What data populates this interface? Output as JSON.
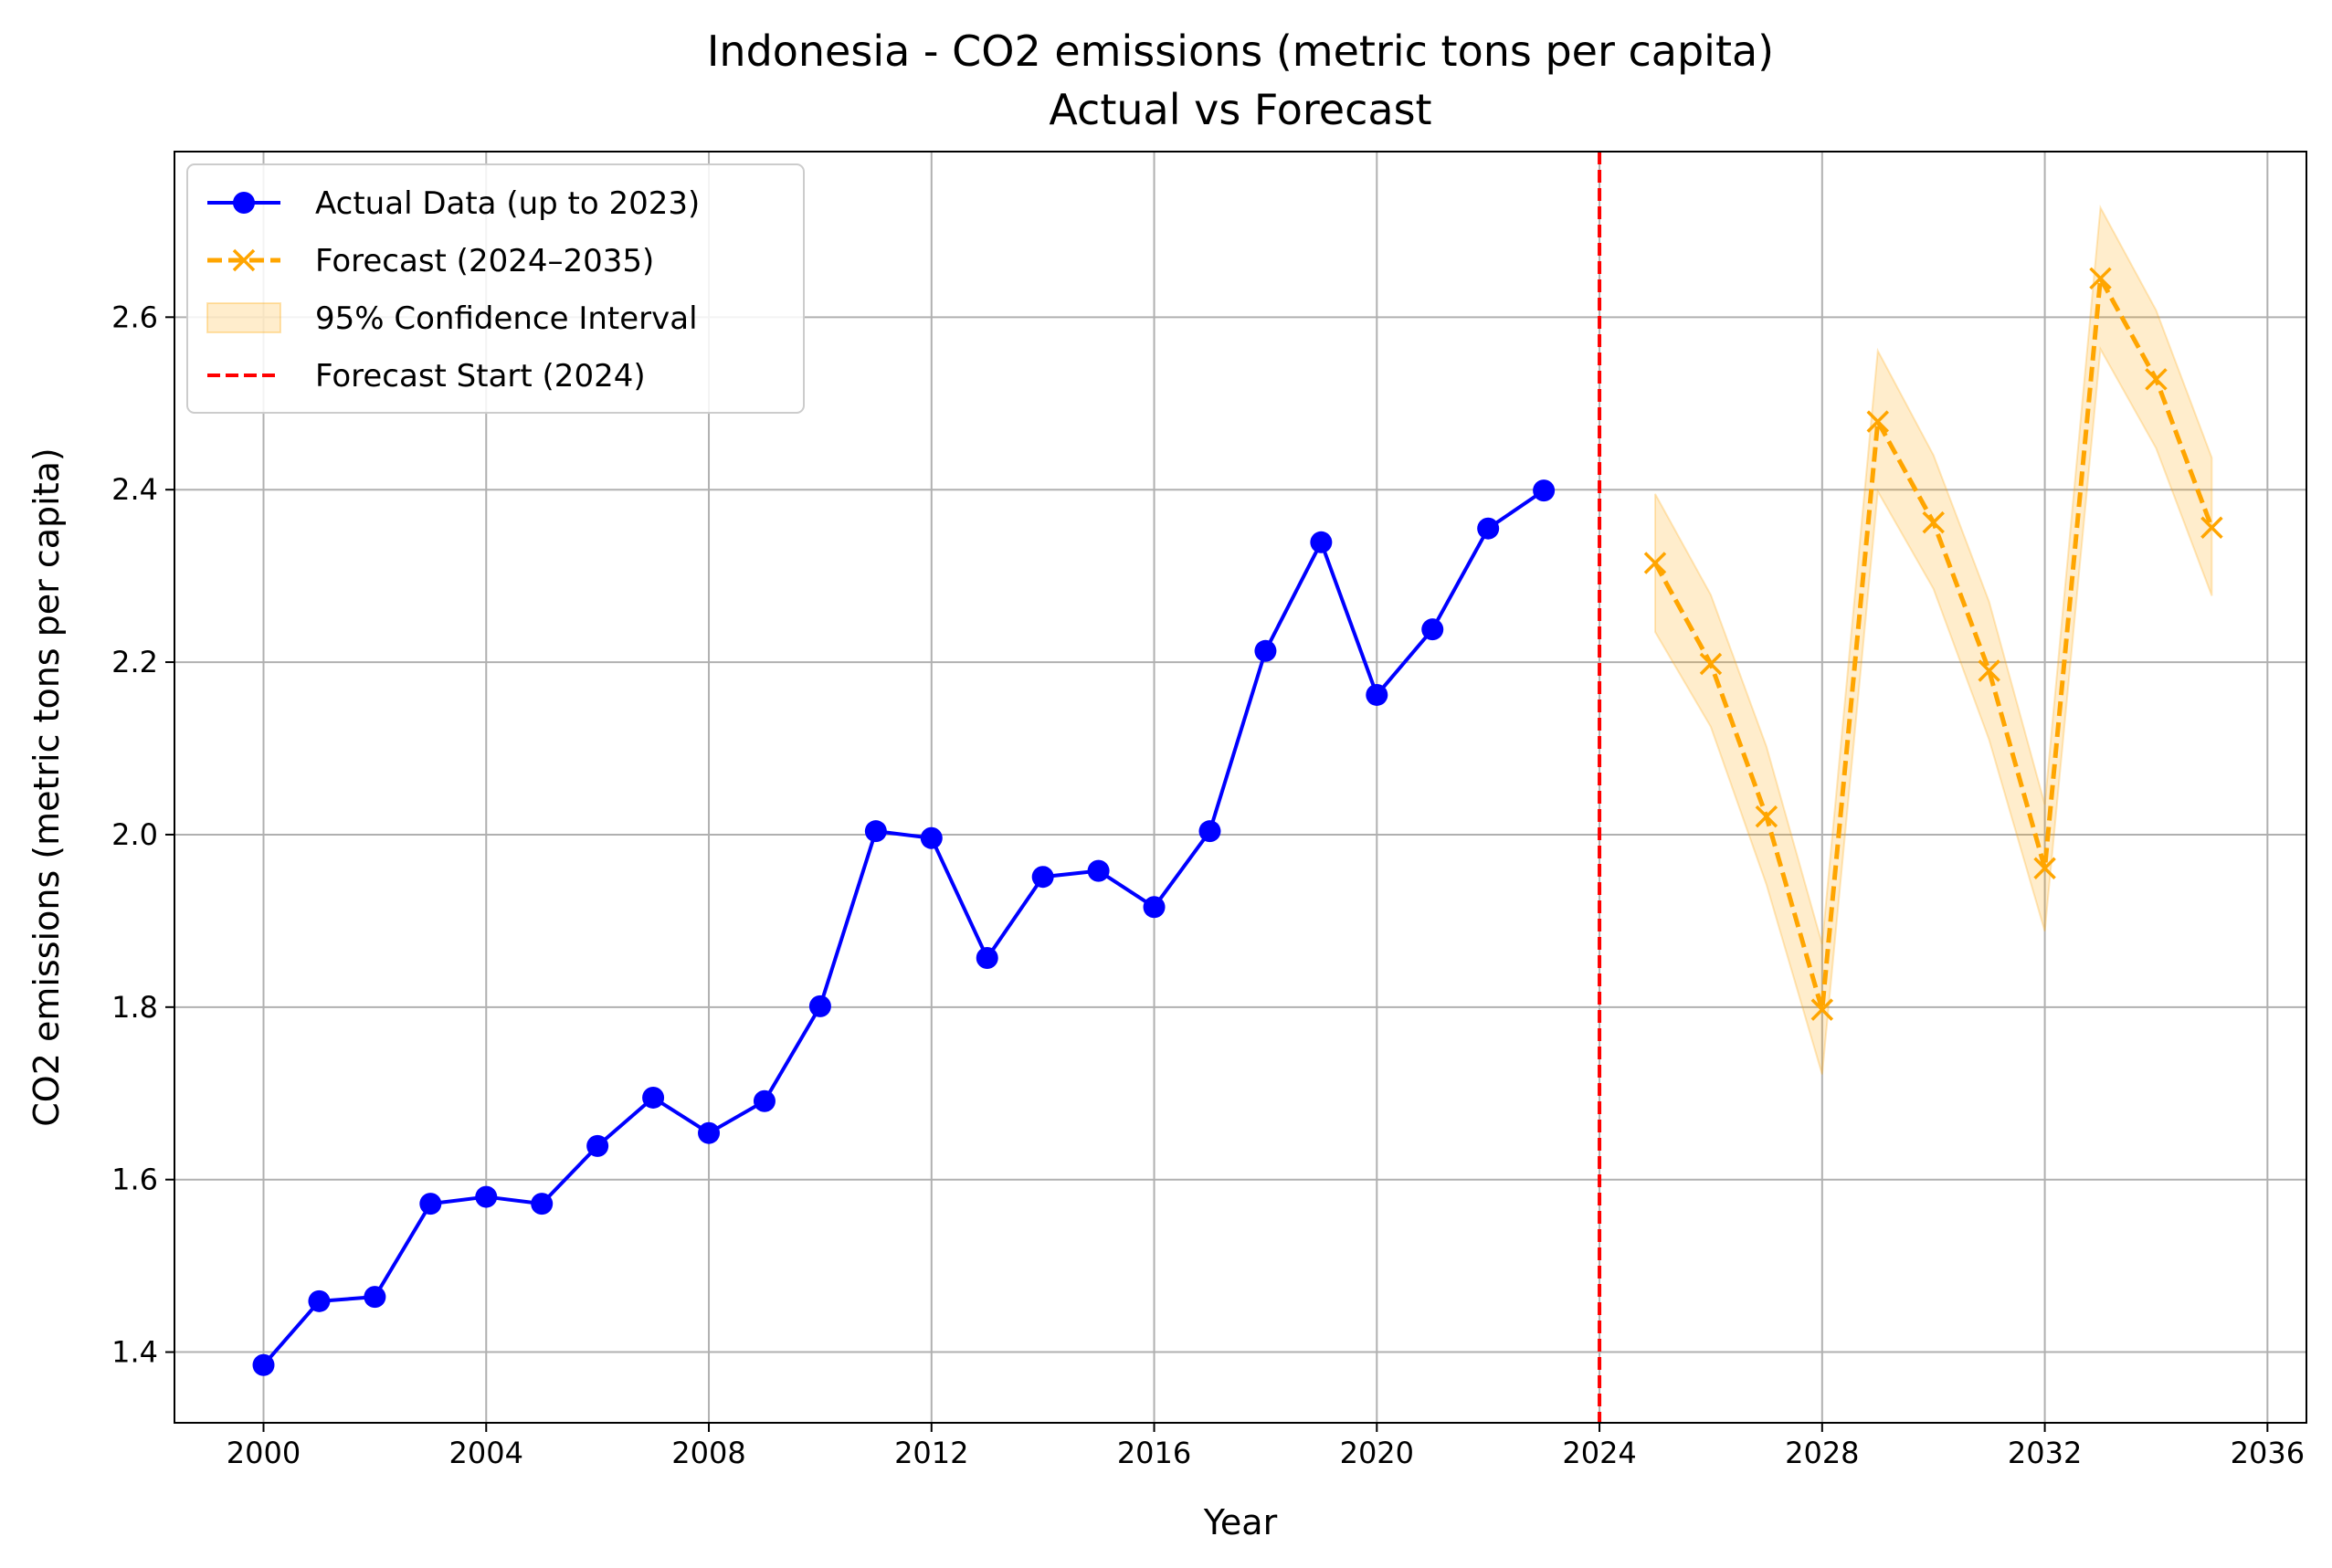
{
  "chart_data": {
    "type": "line",
    "title": "Indonesia - CO2 emissions (metric tons per capita)",
    "subtitle": "Actual vs Forecast",
    "xlabel": "Year",
    "ylabel": "CO2 emissions (metric tons per capita)",
    "xlim": [
      1998.4,
      2036.7
    ],
    "ylim": [
      1.318,
      2.792
    ],
    "x_ticks": [
      2000,
      2004,
      2008,
      2012,
      2016,
      2020,
      2024,
      2028,
      2032,
      2036
    ],
    "y_ticks": [
      1.4,
      1.6,
      1.8,
      2.0,
      2.2,
      2.4,
      2.6
    ],
    "grid": true,
    "legend_position": "upper-left",
    "colors": {
      "actual": "#0000ff",
      "forecast": "#ffa500",
      "confidence": "#ffa500",
      "forecast_start": "#ff0000",
      "grid": "#b0b0b0"
    },
    "series": [
      {
        "name": "Actual Data (up to 2023)",
        "style": "solid-line-circle-markers",
        "x": [
          2000,
          2001,
          2002,
          2003,
          2004,
          2005,
          2006,
          2007,
          2008,
          2009,
          2010,
          2011,
          2012,
          2013,
          2014,
          2015,
          2016,
          2017,
          2018,
          2019,
          2020,
          2021,
          2022,
          2023
        ],
        "y": [
          1.385,
          1.459,
          1.464,
          1.572,
          1.58,
          1.572,
          1.639,
          1.695,
          1.654,
          1.691,
          1.801,
          2.004,
          1.996,
          1.857,
          1.951,
          1.958,
          1.916,
          2.004,
          2.213,
          2.339,
          2.162,
          2.238,
          2.355,
          2.399
        ]
      },
      {
        "name": "Forecast (2024–2035)",
        "style": "dashed-line-x-markers",
        "x": [
          2025,
          2026,
          2027,
          2028,
          2029,
          2030,
          2031,
          2032,
          2033,
          2034,
          2035
        ],
        "y": [
          2.315,
          2.198,
          2.021,
          1.797,
          2.479,
          2.362,
          2.19,
          1.961,
          2.645,
          2.528,
          2.356
        ]
      },
      {
        "name": "95% Confidence Interval",
        "style": "shaded-band",
        "x": [
          2025,
          2026,
          2027,
          2028,
          2029,
          2030,
          2031,
          2032,
          2033,
          2034,
          2035
        ],
        "lower": [
          2.235,
          2.125,
          1.942,
          1.722,
          2.398,
          2.285,
          2.11,
          1.888,
          2.563,
          2.448,
          2.277
        ],
        "upper": [
          2.395,
          2.278,
          2.102,
          1.873,
          2.561,
          2.44,
          2.27,
          2.035,
          2.727,
          2.608,
          2.437
        ]
      },
      {
        "name": "Forecast Start (2024)",
        "style": "dashed-vertical-line",
        "x": 2024
      }
    ]
  }
}
